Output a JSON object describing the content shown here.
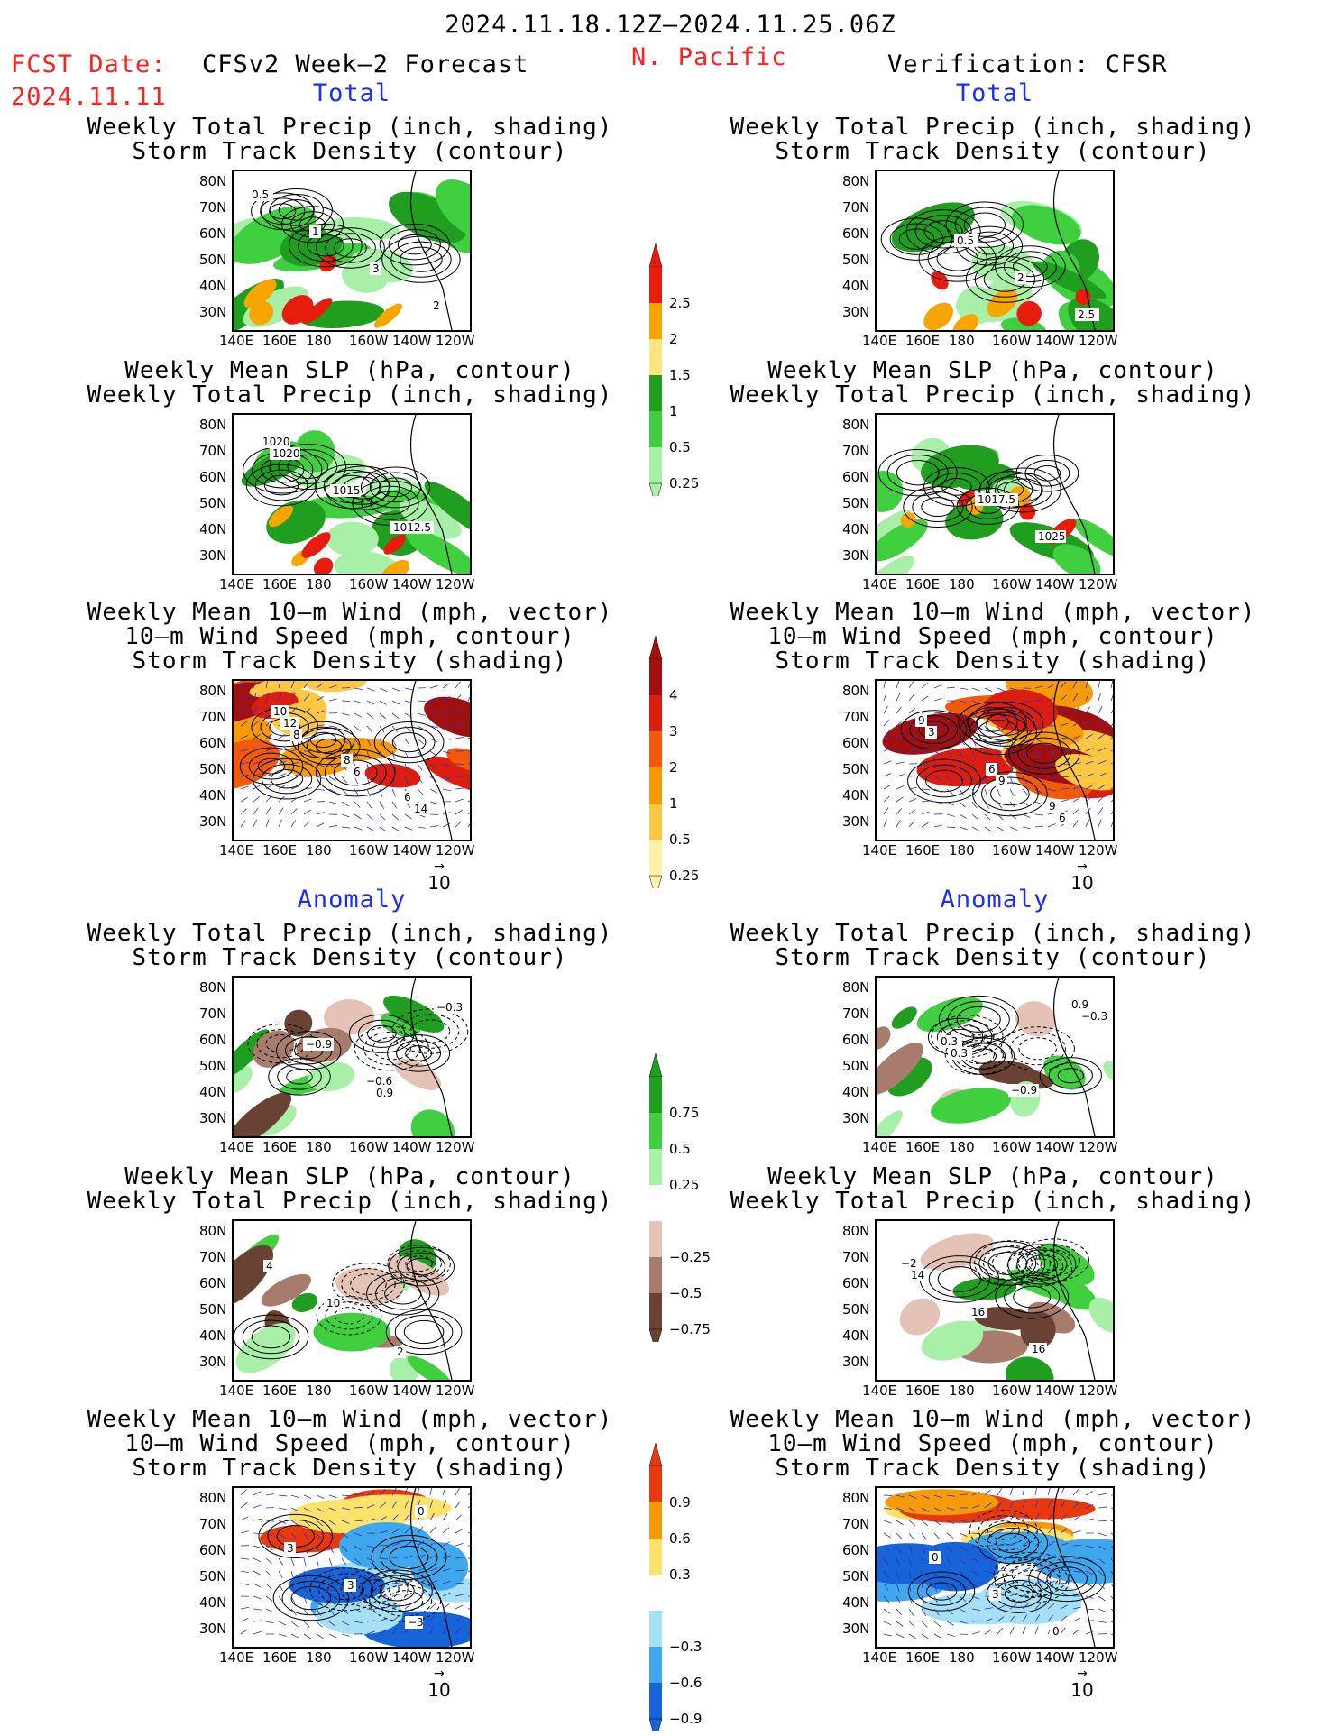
{
  "header": {
    "date_range": "2024.11.18.12Z–2024.11.25.06Z",
    "fcst_label": "FCST Date:",
    "fcst_date": "2024.11.11",
    "forecast_title": "CFSv2 Week–2 Forecast",
    "region": "N. Pacific",
    "verification": "Verification: CFSR"
  },
  "sections": {
    "total": "Total",
    "anomaly": "Anomaly"
  },
  "panel_titles": {
    "precip_track": "Weekly Total Precip (inch, shading)\nStorm Track Density (contour)",
    "slp_precip": "Weekly Mean SLP (hPa, contour)\nWeekly Total Precip (inch, shading)",
    "wind_track": "Weekly Mean 10–m Wind (mph, vector)\n10–m Wind Speed (mph, contour)\nStorm Track Density (shading)"
  },
  "axes": {
    "lat": [
      "80N",
      "70N",
      "60N",
      "50N",
      "40N",
      "30N"
    ],
    "lon": [
      "140E",
      "160E",
      "180",
      "160W",
      "140W",
      "120W"
    ]
  },
  "vector_ref": "10",
  "colorbars": {
    "precip_total": {
      "labels": [
        "2.5",
        "2",
        "1.5",
        "1",
        "0.5",
        "0.25"
      ],
      "colors": [
        "#e81c0c",
        "#f7a600",
        "#ffe680",
        "#1f9e1f",
        "#3fcf3f",
        "#a8f0a8"
      ]
    },
    "track_total": {
      "labels": [
        "4",
        "3",
        "2",
        "1",
        "0.5",
        "0.25"
      ],
      "colors": [
        "#a01010",
        "#dc1e10",
        "#f25a0a",
        "#f79a0a",
        "#fcc844",
        "#fff2a8"
      ]
    },
    "precip_anom": {
      "labels": [
        "0.75",
        "0.5",
        "0.25",
        "−0.25",
        "−0.5",
        "−0.75"
      ],
      "colors": [
        "#1f9e1f",
        "#3fcf3f",
        "#a8f0a8",
        "#ffffff",
        "#e4c2b6",
        "#a87c6c",
        "#6a4234"
      ]
    },
    "track_anom": {
      "labels": [
        "0.9",
        "0.6",
        "0.3",
        "−0.3",
        "−0.6",
        "−0.9"
      ],
      "colors": [
        "#e8380e",
        "#f79a0a",
        "#fde36a",
        "#ffffff",
        "#a6e0f5",
        "#3fa8ec",
        "#1664d8"
      ]
    }
  },
  "contour_labels": {
    "p1": [
      "0.5",
      "1",
      "3",
      "2"
    ],
    "p2": [
      "1020",
      "1015",
      "1012.5",
      "1020"
    ],
    "p3": [
      "8",
      "6",
      "14",
      "12",
      "8",
      "6",
      "10"
    ],
    "p4": [
      "0.5",
      "2",
      "2.5"
    ],
    "p5": [
      "1017.5",
      "1025"
    ],
    "p6": [
      "9",
      "6",
      "3",
      "6",
      "9",
      "9"
    ],
    "p7": [
      "0.9",
      "−0.3",
      "−0.9",
      "−0.6"
    ],
    "p8": [
      "2",
      "4",
      "10"
    ],
    "p9": [
      "0",
      "3",
      "3",
      "−3"
    ],
    "p10": [
      "−0.3",
      "0.3",
      "−0.9",
      "0.9",
      "0.3"
    ],
    "p11": [
      "14",
      "16",
      "16",
      "−2"
    ],
    "p12": [
      "0",
      "3",
      "0"
    ]
  }
}
